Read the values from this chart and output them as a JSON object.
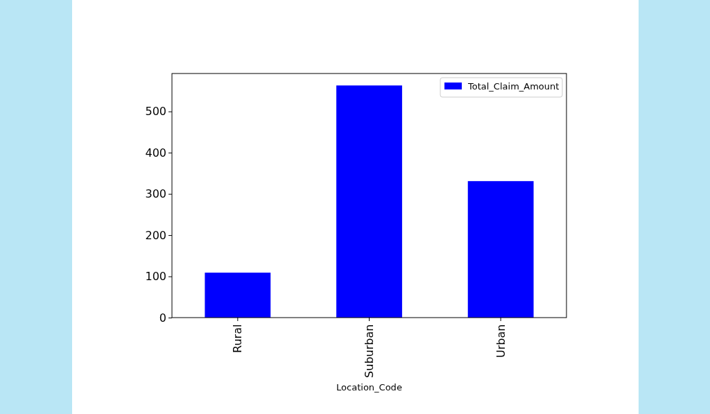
{
  "chart_data": {
    "type": "bar",
    "xlabel": "Location_Code",
    "categories": [
      "Rural",
      "Suburban",
      "Urban"
    ],
    "series": [
      {
        "name": "Total_Claim_Amount",
        "color": "#0000ff",
        "values": [
          109,
          563,
          331
        ]
      }
    ],
    "ylim": [
      0,
      592
    ],
    "yticks": [
      0,
      100,
      200,
      300,
      400,
      500
    ],
    "grid": false,
    "legend": "top right"
  }
}
